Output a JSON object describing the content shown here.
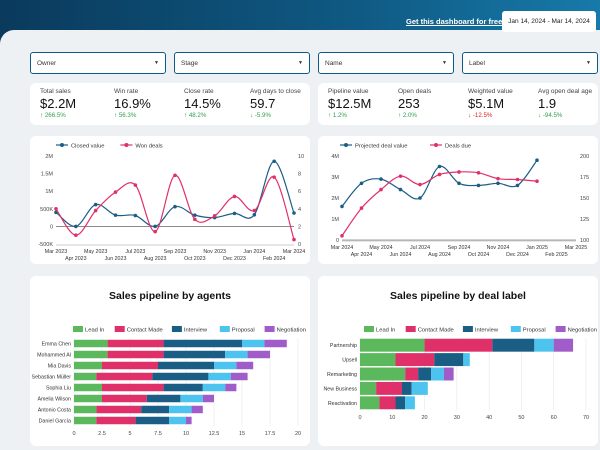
{
  "header": {
    "get_dashboard_link": "Get this dashboard for free",
    "date_range": "Jan 14, 2024 - Mar 14, 2024"
  },
  "filters": [
    {
      "label": "Owner"
    },
    {
      "label": "Stage"
    },
    {
      "label": "Name"
    },
    {
      "label": "Label"
    }
  ],
  "kpis_left": [
    {
      "label": "Total sales",
      "value": "$2.2M",
      "delta": "266.5%",
      "dir": "up"
    },
    {
      "label": "Win rate",
      "value": "16.9%",
      "delta": "56.3%",
      "dir": "up"
    },
    {
      "label": "Close rate",
      "value": "14.5%",
      "delta": "48.2%",
      "dir": "up"
    },
    {
      "label": "Avg days to close",
      "value": "59.7",
      "delta": "-5.9%",
      "dir": "up"
    }
  ],
  "kpis_right": [
    {
      "label": "Pipeline value",
      "value": "$12.5M",
      "delta": "1.2%",
      "dir": "up"
    },
    {
      "label": "Open deals",
      "value": "253",
      "delta": "2.0%",
      "dir": "up"
    },
    {
      "label": "Weighted value",
      "value": "$5.1M",
      "delta": "-12.5%",
      "dir": "down"
    },
    {
      "label": "Avg open deal age",
      "value": "1.9",
      "delta": "-94.5%",
      "dir": "up"
    }
  ],
  "icons": {
    "up": "arrow-up-icon",
    "down": "arrow-down-icon",
    "caret": "chevron-down-icon"
  },
  "colors": {
    "lead_in": "#5cb85c",
    "contact_made": "#e0306a",
    "interview": "#1a5e85",
    "proposal": "#4dc3ef",
    "negotiation": "#a05cc8",
    "series_blue": "#1a5e85",
    "series_pink": "#e0306a"
  },
  "chart_data": [
    {
      "type": "line",
      "legend": [
        "Closed value",
        "Won deals"
      ],
      "x": [
        "Mar 2023",
        "Apr 2023",
        "May 2023",
        "Jun 2023",
        "Jul 2023",
        "Aug 2023",
        "Sep 2023",
        "Oct 2023",
        "Nov 2023",
        "Dec 2023",
        "Jan 2024",
        "Feb 2024",
        "Mar 2024"
      ],
      "x_ticks_top": [
        "Mar 2023",
        "May 2023",
        "Jul 2023",
        "Sep 2023",
        "Nov 2023",
        "Jan 2024",
        "Mar 2024"
      ],
      "x_ticks_bottom": [
        "Apr 2023",
        "Jun 2023",
        "Aug 2023",
        "Oct 2023",
        "Dec 2023",
        "Feb 2024"
      ],
      "y_ticks_left": [
        "2M",
        "1.5M",
        "1M",
        "500K",
        "0",
        "-500K"
      ],
      "y_ticks_right": [
        "10",
        "8",
        "6",
        "4",
        "2",
        "0"
      ],
      "ylim_left": [
        -500000,
        2000000
      ],
      "ylim_right": [
        0,
        10
      ],
      "series": [
        {
          "name": "Closed value",
          "axis": "left",
          "values": [
            400000,
            0,
            620000,
            320000,
            310000,
            0,
            560000,
            320000,
            250000,
            370000,
            330000,
            1850000,
            380000
          ]
        },
        {
          "name": "Won deals",
          "axis": "right",
          "values": [
            4.0,
            1.0,
            3.8,
            5.9,
            6.7,
            1.4,
            7.8,
            2.8,
            3.2,
            5.4,
            3.8,
            7.6,
            0.5
          ]
        }
      ]
    },
    {
      "type": "line",
      "legend": [
        "Projected deal value",
        "Deals due"
      ],
      "x": [
        "Mar 2024",
        "Apr 2024",
        "May 2024",
        "Jun 2024",
        "Jul 2024",
        "Aug 2024",
        "Sep 2024",
        "Oct 2024",
        "Nov 2024",
        "Dec 2024",
        "Jan 2025"
      ],
      "x_ticks_top": [
        "Mar 2024",
        "May 2024",
        "Jul 2024",
        "Sep 2024",
        "Nov 2024",
        "Jan 2025",
        "Mar 2025"
      ],
      "x_ticks_bottom": [
        "Apr 2024",
        "Jun 2024",
        "Aug 2024",
        "Oct 2024",
        "Dec 2024",
        "Feb 2025"
      ],
      "y_ticks_left": [
        "4M",
        "3M",
        "2M",
        "1M",
        "0"
      ],
      "y_ticks_right": [
        "200",
        "175",
        "150",
        "125",
        "100"
      ],
      "ylim_left": [
        0,
        4000000
      ],
      "ylim_right": [
        100,
        200
      ],
      "series": [
        {
          "name": "Projected deal value",
          "axis": "left",
          "values": [
            1600000,
            2700000,
            2900000,
            2400000,
            2000000,
            3500000,
            2700000,
            2600000,
            2700000,
            2600000,
            3800000
          ]
        },
        {
          "name": "Deals due",
          "axis": "right",
          "values": [
            105,
            138,
            160,
            176,
            166,
            178,
            181,
            180,
            173,
            172,
            170
          ]
        }
      ]
    },
    {
      "type": "bar",
      "orientation": "horizontal",
      "stacked": true,
      "title": "Sales pipeline by agents",
      "legend": [
        "Lead In",
        "Contact Made",
        "Interview",
        "Proposal",
        "Negotiation"
      ],
      "categories": [
        "Emma Chen",
        "Mohammed Al",
        "Mia Davis",
        "Sebastian Müller",
        "Sophia Liu",
        "Amelia Wilson",
        "Antonio Costa",
        "Daniel García"
      ],
      "x_ticks": [
        "0",
        "2.5",
        "5",
        "7.5",
        "10",
        "12.5",
        "15",
        "17.5",
        "20"
      ],
      "xlim": [
        0,
        20
      ],
      "series": [
        {
          "name": "Lead In",
          "values": [
            3,
            3,
            2.5,
            2,
            2.5,
            2.5,
            2,
            2
          ]
        },
        {
          "name": "Contact Made",
          "values": [
            5,
            5,
            5,
            5,
            5.5,
            4,
            4,
            3.5
          ]
        },
        {
          "name": "Interview",
          "values": [
            7,
            5.5,
            5,
            5,
            3.5,
            3,
            2.5,
            3
          ]
        },
        {
          "name": "Proposal",
          "values": [
            2,
            2,
            2,
            2,
            2,
            2,
            2,
            1.5
          ]
        },
        {
          "name": "Negotiation",
          "values": [
            2,
            2,
            1.5,
            1.5,
            1,
            1,
            1,
            0.5
          ]
        }
      ]
    },
    {
      "type": "bar",
      "orientation": "horizontal",
      "stacked": true,
      "title": "Sales pipeline by deal label",
      "legend": [
        "Lead In",
        "Contact Made",
        "Interview",
        "Proposal",
        "Negotiation"
      ],
      "categories": [
        "Partnership",
        "Upsell",
        "Remarketing",
        "New Business",
        "Reactivation"
      ],
      "x_ticks": [
        "0",
        "10",
        "20",
        "30",
        "40",
        "50",
        "60",
        "70"
      ],
      "xlim": [
        0,
        70
      ],
      "series": [
        {
          "name": "Lead In",
          "values": [
            20,
            11,
            14,
            5,
            6
          ]
        },
        {
          "name": "Contact Made",
          "values": [
            21,
            12,
            4,
            8,
            5
          ]
        },
        {
          "name": "Interview",
          "values": [
            13,
            9,
            4,
            3,
            3
          ]
        },
        {
          "name": "Proposal",
          "values": [
            6,
            2,
            4,
            5,
            3
          ]
        },
        {
          "name": "Negotiation",
          "values": [
            6,
            0,
            3,
            0,
            0
          ]
        }
      ]
    }
  ]
}
